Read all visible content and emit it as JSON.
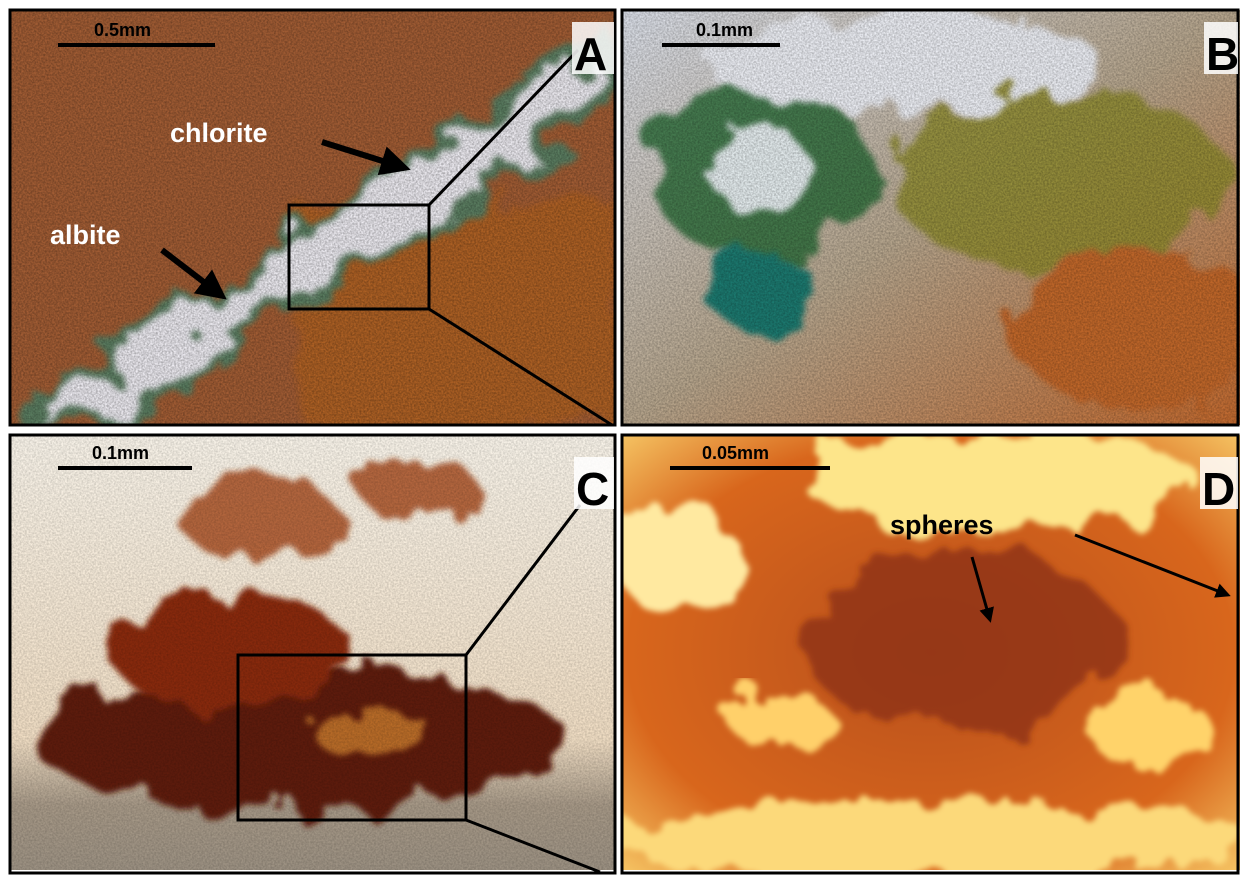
{
  "panels": [
    {
      "label": "A",
      "scale_bar": "0.5mm",
      "annotations": [
        "chlorite",
        "albite"
      ]
    },
    {
      "label": "B",
      "scale_bar": "0.1mm"
    },
    {
      "label": "C",
      "scale_bar": "0.1mm"
    },
    {
      "label": "D",
      "scale_bar": "0.05mm",
      "annotations": [
        "spheres"
      ]
    }
  ]
}
